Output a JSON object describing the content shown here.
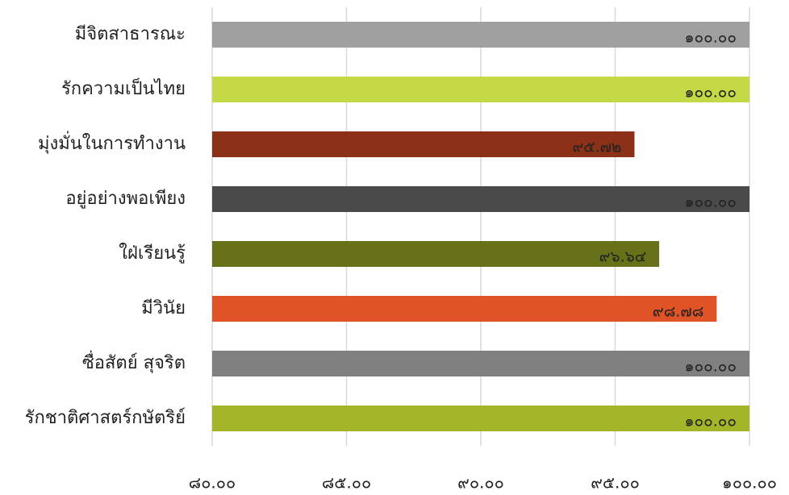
{
  "chart_data": {
    "type": "bar",
    "orientation": "horizontal",
    "categories": [
      "มีจิตสาธารณะ",
      "รักความเป็นไทย",
      "มุ่งมั่นในการทำงาน",
      "อยู่อย่างพอเพียง",
      "ใฝ่เรียนรู้",
      "มีวินัย",
      "ซื่อสัตย์ สุจริต",
      "รักชาติศาสตร์กษัตริย์"
    ],
    "values": [
      100,
      100,
      95.72,
      100,
      96.64,
      98.78,
      100,
      100
    ],
    "value_labels": [
      "๑๐๐.๐๐",
      "๑๐๐.๐๐",
      "๙๕.๗๒",
      "๑๐๐.๐๐",
      "๙๖.๖๔",
      "๙๘.๗๘",
      "๑๐๐.๐๐",
      "๑๐๐.๐๐"
    ],
    "colors": [
      "#a0a0a0",
      "#c5d846",
      "#8b3118",
      "#4a4a4a",
      "#667118",
      "#e05326",
      "#808080",
      "#a4b52a"
    ],
    "xlim": [
      80,
      100
    ],
    "xticks": [
      {
        "value": 80,
        "label": "๘๐.๐๐"
      },
      {
        "value": 85,
        "label": "๘๕.๐๐"
      },
      {
        "value": 90,
        "label": "๙๐.๐๐"
      },
      {
        "value": 95,
        "label": "๙๕.๐๐"
      },
      {
        "value": 100,
        "label": "๑๐๐.๐๐"
      }
    ],
    "grid": true
  }
}
